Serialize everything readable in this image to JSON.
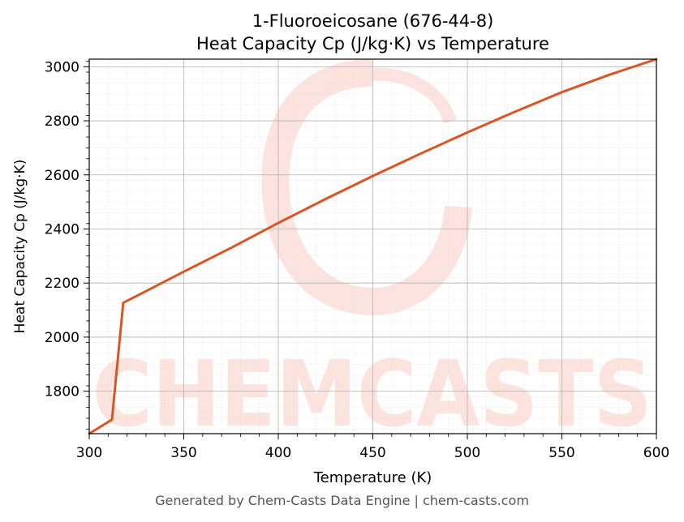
{
  "chart_data": {
    "type": "line",
    "title_line1": "1-Fluoroeicosane (676-44-8)",
    "title_line2": "Heat Capacity Cp (J/kg·K) vs Temperature",
    "xlabel": "Temperature (K)",
    "ylabel": "Heat Capacity Cp (J/kg·K)",
    "xlim": [
      300,
      600
    ],
    "ylim": [
      1643,
      3028
    ],
    "xticks": [
      300,
      350,
      400,
      450,
      500,
      550,
      600
    ],
    "yticks": [
      1800,
      2000,
      2200,
      2400,
      2600,
      2800,
      3000
    ],
    "grid": true,
    "series": [
      {
        "color": "#d95525",
        "x": [
          300,
          312,
          318,
          330,
          350,
          375,
          400,
          425,
          450,
          475,
          500,
          525,
          550,
          575,
          600
        ],
        "y": [
          1643,
          1695,
          2127,
          2170,
          2242,
          2330,
          2422,
          2511,
          2596,
          2678,
          2757,
          2833,
          2906,
          2970,
          3028
        ]
      }
    ],
    "watermark": "CHEMCASTS"
  },
  "footer": "Generated by Chem-Casts Data Engine | chem-casts.com"
}
